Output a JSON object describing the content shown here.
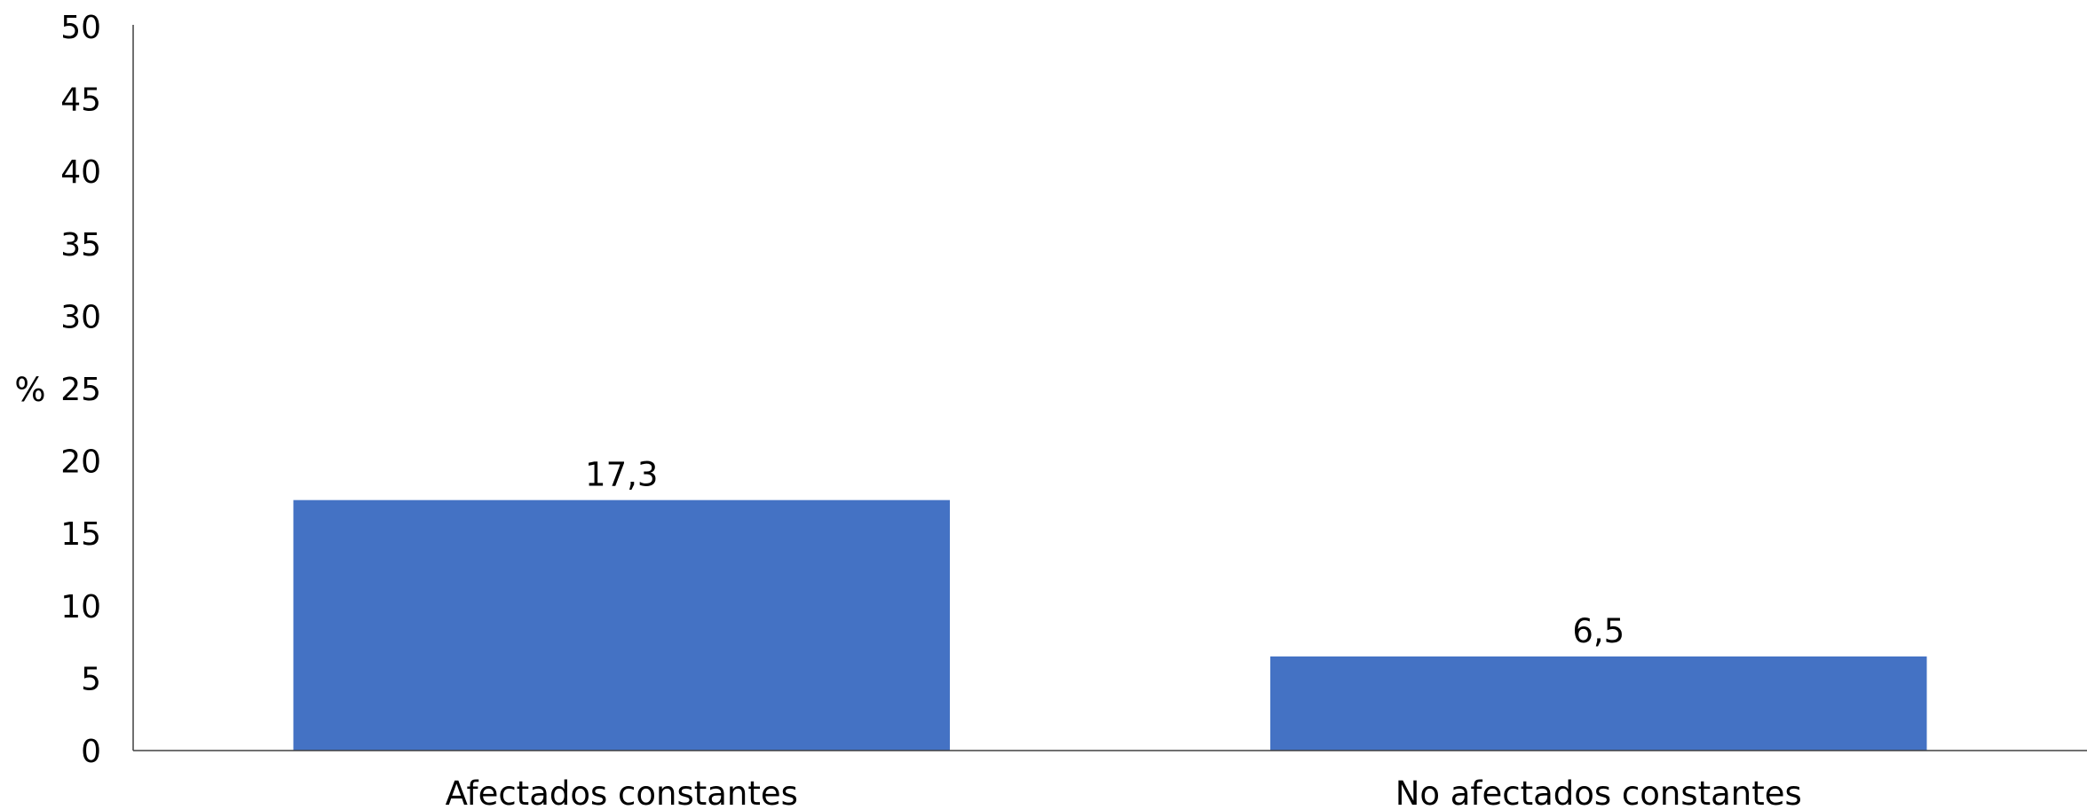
{
  "chart_data": {
    "type": "bar",
    "categories": [
      "Afectados constantes",
      "No afectados constantes"
    ],
    "values": [
      17.3,
      6.5
    ],
    "value_labels": [
      "17,3",
      "6,5"
    ],
    "title": "",
    "xlabel": "",
    "ylabel": "%",
    "ylim": [
      0,
      50
    ],
    "yticks": [
      0,
      5,
      10,
      15,
      20,
      25,
      30,
      35,
      40,
      45,
      50
    ],
    "grid": false,
    "legend": "none",
    "bar_color": "#4472C4",
    "axis_color": "#404040"
  }
}
